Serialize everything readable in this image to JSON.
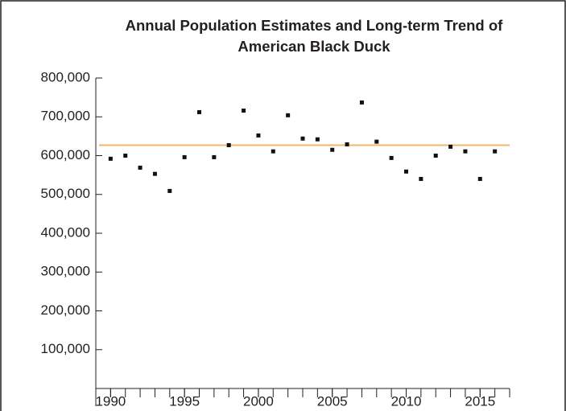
{
  "chart_data": {
    "type": "scatter",
    "title": [
      "Annual Population Estimates and Long-term Trend of",
      "American Black Duck"
    ],
    "x": [
      1990,
      1991,
      1992,
      1993,
      1994,
      1995,
      1996,
      1997,
      1998,
      1999,
      2000,
      2001,
      2002,
      2003,
      2004,
      2005,
      2006,
      2007,
      2008,
      2009,
      2010,
      2011,
      2012,
      2013,
      2014,
      2015,
      2016
    ],
    "values": [
      592000,
      600000,
      569000,
      553000,
      509000,
      596000,
      712000,
      596000,
      627000,
      716000,
      652000,
      611000,
      704000,
      644000,
      642000,
      615000,
      629000,
      737000,
      636000,
      594000,
      559000,
      540000,
      600000,
      623000,
      611000,
      540000,
      611000
    ],
    "color": "#111111",
    "trend_value": 627000,
    "trend_color": "#f5b46a",
    "xlim": [
      1989,
      2017
    ],
    "xticks": [
      1990,
      1995,
      2000,
      2005,
      2010,
      2015
    ],
    "xminor_ticks": [
      1989,
      1990,
      1991,
      1992,
      1993,
      1994,
      1995,
      1996,
      1997,
      1998,
      1999,
      2000,
      2001,
      2002,
      2003,
      2004,
      2005,
      2006,
      2007,
      2008,
      2009,
      2010,
      2011,
      2012,
      2013,
      2014,
      2015,
      2016,
      2017
    ],
    "ylim": [
      0,
      800000
    ],
    "yticks": [
      {
        "value": 100000,
        "label": "100,000"
      },
      {
        "value": 200000,
        "label": "200,000"
      },
      {
        "value": 300000,
        "label": "300,000"
      },
      {
        "value": 400000,
        "label": "400,000"
      },
      {
        "value": 500000,
        "label": "500,000"
      },
      {
        "value": 600000,
        "label": "600,000"
      },
      {
        "value": 700000,
        "label": "700,000"
      },
      {
        "value": 800000,
        "label": "800,000"
      }
    ]
  }
}
